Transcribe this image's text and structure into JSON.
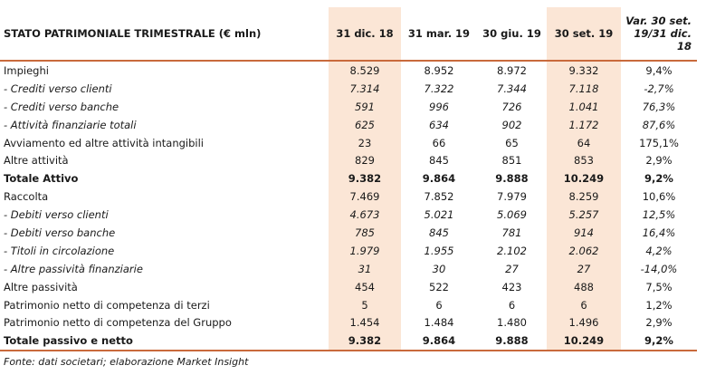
{
  "header": {
    "title": "STATO PATRIMONIALE TRIMESTRALE (€ mln)",
    "col1": "31 dic. 18",
    "col2": "31 mar. 19",
    "col3": "30 giu. 19",
    "col4": "30 set. 19",
    "col5_line1": "Var. 30 set.",
    "col5_line2": "19/31 dic.",
    "col5_line3": "18"
  },
  "rows": [
    {
      "label": "Impieghi",
      "v": [
        "8.529",
        "8.952",
        "8.972",
        "9.332",
        "9,4%"
      ]
    },
    {
      "label": "- Crediti verso clienti",
      "v": [
        "7.314",
        "7.322",
        "7.344",
        "7.118",
        "-2,7%"
      ]
    },
    {
      "label": "- Crediti verso banche",
      "v": [
        "591",
        "996",
        "726",
        "1.041",
        "76,3%"
      ]
    },
    {
      "label": "- Attività finanziarie totali",
      "v": [
        "625",
        "634",
        "902",
        "1.172",
        "87,6%"
      ]
    },
    {
      "label": "Avviamento ed altre attività intangibili",
      "v": [
        "23",
        "66",
        "65",
        "64",
        "175,1%"
      ]
    },
    {
      "label": "Altre attività",
      "v": [
        "829",
        "845",
        "851",
        "853",
        "2,9%"
      ]
    },
    {
      "label": "Totale Attivo",
      "v": [
        "9.382",
        "9.864",
        "9.888",
        "10.249",
        "9,2%"
      ]
    },
    {
      "label": "Raccolta",
      "v": [
        "7.469",
        "7.852",
        "7.979",
        "8.259",
        "10,6%"
      ]
    },
    {
      "label": "- Debiti verso clienti",
      "v": [
        "4.673",
        "5.021",
        "5.069",
        "5.257",
        "12,5%"
      ]
    },
    {
      "label": "- Debiti verso banche",
      "v": [
        "785",
        "845",
        "781",
        "914",
        "16,4%"
      ]
    },
    {
      "label": "- Titoli in circolazione",
      "v": [
        "1.979",
        "1.955",
        "2.102",
        "2.062",
        "4,2%"
      ]
    },
    {
      "label": "- Altre passività finanziarie",
      "v": [
        "31",
        "30",
        "27",
        "27",
        "-14,0%"
      ]
    },
    {
      "label": "Altre passività",
      "v": [
        "454",
        "522",
        "423",
        "488",
        "7,5%"
      ]
    },
    {
      "label": "Patrimonio netto di competenza di terzi",
      "v": [
        "5",
        "6",
        "6",
        "6",
        "1,2%"
      ]
    },
    {
      "label": "Patrimonio netto di competenza del Gruppo",
      "v": [
        "1.454",
        "1.484",
        "1.480",
        "1.496",
        "2,9%"
      ]
    },
    {
      "label": "Totale passivo e netto",
      "v": [
        "9.382",
        "9.864",
        "9.888",
        "10.249",
        "9,2%"
      ]
    }
  ],
  "source": "Fonte: dati societari; elaborazione Market Insight",
  "colors": {
    "accent": "#c96a3c",
    "shade": "#fbe6d6"
  }
}
